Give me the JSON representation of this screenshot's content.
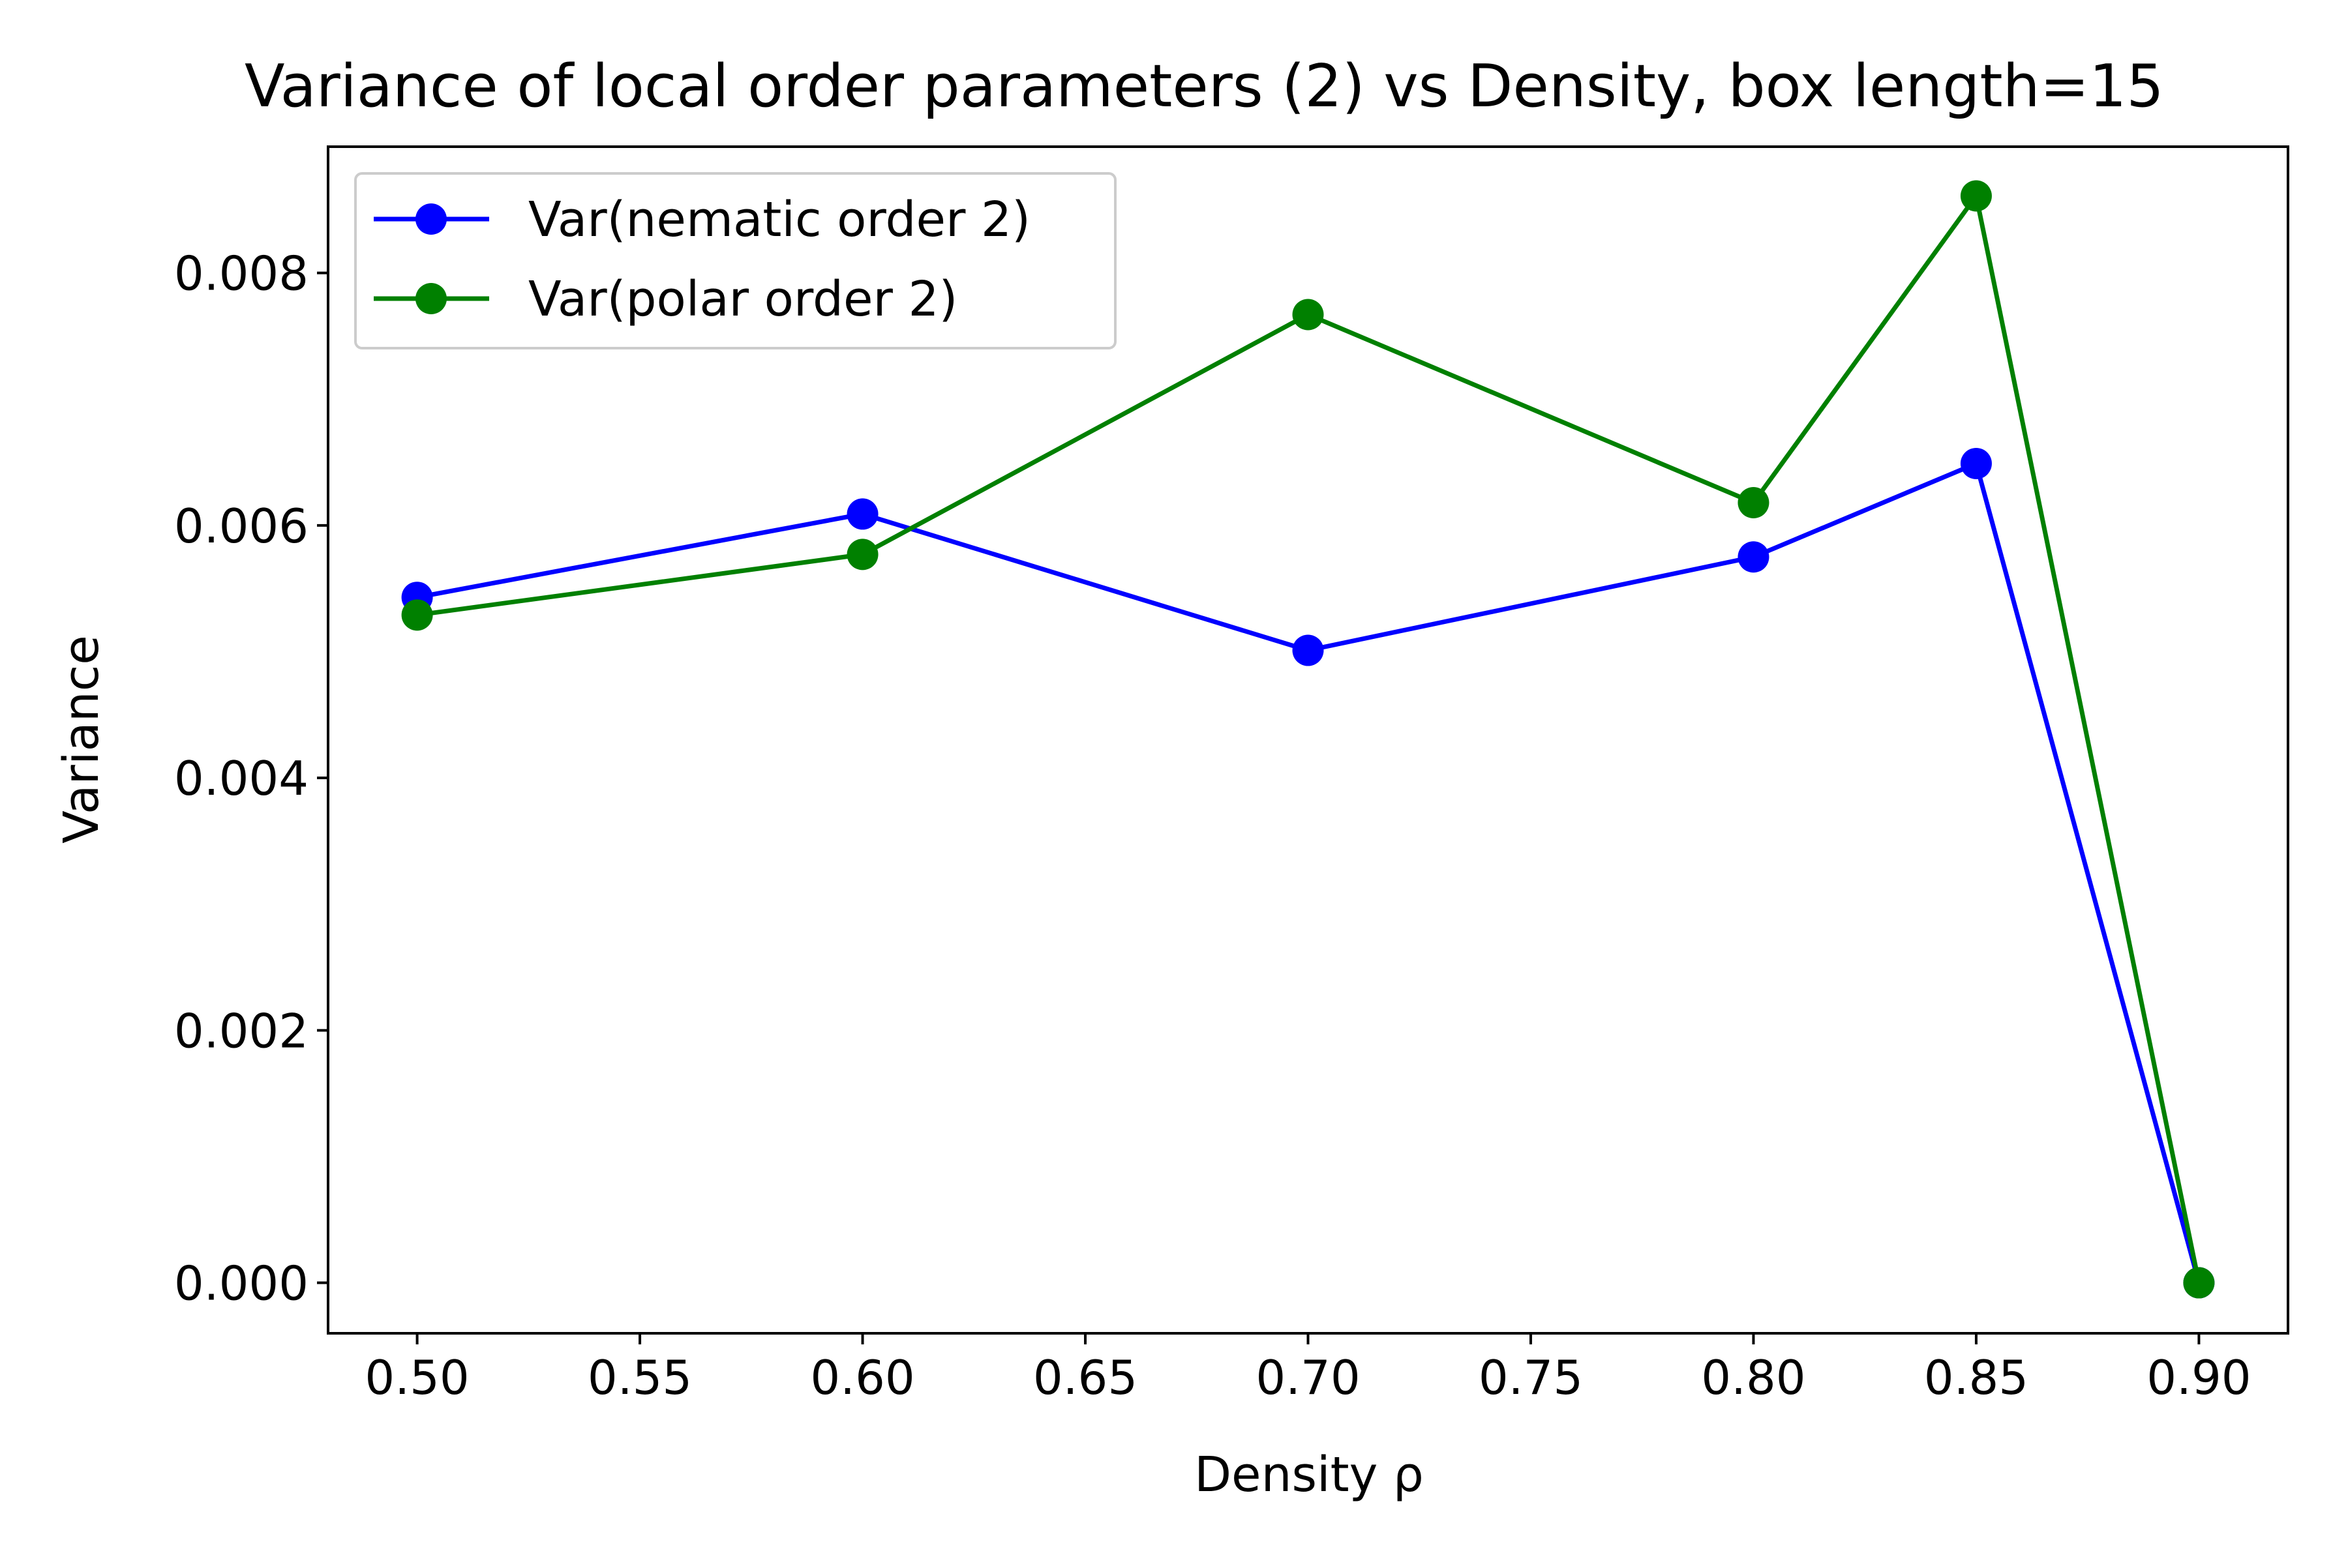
{
  "chart_data": {
    "type": "line",
    "title": "Variance of local order parameters (2) vs Density, box length=15",
    "xlabel": "Density ρ",
    "ylabel": "Variance",
    "xlim": [
      0.48,
      0.92
    ],
    "ylim": [
      -0.0004,
      0.009
    ],
    "xticks": [
      0.5,
      0.55,
      0.6,
      0.65,
      0.7,
      0.75,
      0.8,
      0.85,
      0.9
    ],
    "xtick_labels": [
      "0.50",
      "0.55",
      "0.60",
      "0.65",
      "0.70",
      "0.75",
      "0.80",
      "0.85",
      "0.90"
    ],
    "yticks": [
      0.0,
      0.002,
      0.004,
      0.006,
      0.008
    ],
    "ytick_labels": [
      "0.000",
      "0.002",
      "0.004",
      "0.006",
      "0.008"
    ],
    "grid": false,
    "legend_position": "upper-left",
    "x": [
      0.5,
      0.6,
      0.7,
      0.8,
      0.85,
      0.9
    ],
    "series": [
      {
        "name": "Var(nematic order 2)",
        "color": "#0000ff",
        "marker": "circle",
        "values": [
          0.00543,
          0.00609,
          0.00501,
          0.00575,
          0.00649,
          0.0
        ]
      },
      {
        "name": "Var(polar order 2)",
        "color": "#008000",
        "marker": "circle",
        "values": [
          0.00529,
          0.00577,
          0.00767,
          0.00618,
          0.00861,
          0.0
        ]
      }
    ]
  }
}
